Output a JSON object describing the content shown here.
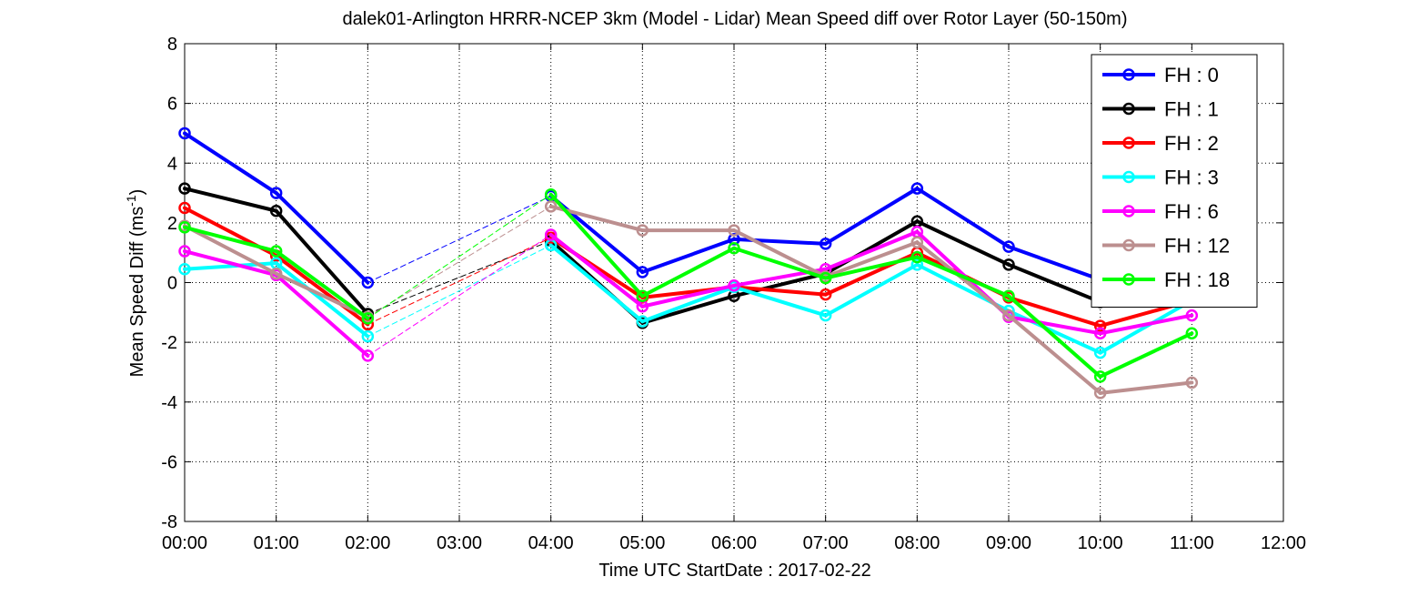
{
  "chart_data": {
    "type": "line",
    "title": "dalek01-Arlington HRRR-NCEP 3km (Model - Lidar) Mean Speed diff over Rotor Layer (50-150m)",
    "xlabel": "Time UTC    StartDate : 2017-02-22",
    "ylabel_main": "Mean Speed Diff (ms",
    "ylabel_sup": "-1",
    "ylabel_close": ")",
    "ylim": [
      -8,
      8
    ],
    "yticks": [
      -8,
      -6,
      -4,
      -2,
      0,
      2,
      4,
      6,
      8
    ],
    "xticks": [
      0,
      1,
      2,
      3,
      4,
      5,
      6,
      7,
      8,
      9,
      10,
      11,
      12
    ],
    "xtick_labels": [
      "00:00",
      "01:00",
      "02:00",
      "03:00",
      "04:00",
      "05:00",
      "06:00",
      "07:00",
      "08:00",
      "09:00",
      "10:00",
      "11:00",
      "12:00"
    ],
    "xlim": [
      0,
      12
    ],
    "grid": "dotted",
    "legend_position": "top-right",
    "gap_style": "thin dashed line across missing hour 03:00",
    "series": [
      {
        "name": "FH : 0",
        "color": "#0000ff",
        "x": [
          0,
          1,
          2,
          4,
          5,
          6,
          7,
          8,
          9,
          10,
          11
        ],
        "values": [
          5.0,
          3.0,
          0.0,
          2.9,
          0.35,
          1.45,
          1.3,
          3.15,
          1.2,
          0.1,
          null
        ]
      },
      {
        "name": "FH : 1",
        "color": "#000000",
        "x": [
          0,
          1,
          2,
          4,
          5,
          6,
          7,
          8,
          9,
          10,
          11
        ],
        "values": [
          3.15,
          2.4,
          -1.05,
          1.4,
          -1.35,
          -0.45,
          0.3,
          2.05,
          0.6,
          -0.65,
          null
        ]
      },
      {
        "name": "FH : 2",
        "color": "#ff0000",
        "x": [
          0,
          1,
          2,
          4,
          5,
          6,
          7,
          8,
          9,
          10,
          11
        ],
        "values": [
          2.5,
          0.9,
          -1.4,
          1.5,
          -0.5,
          -0.15,
          -0.4,
          1.0,
          -0.5,
          -1.45,
          -0.6
        ]
      },
      {
        "name": "FH : 3",
        "color": "#00ffff",
        "x": [
          0,
          1,
          2,
          4,
          5,
          6,
          7,
          8,
          9,
          10,
          11
        ],
        "values": [
          0.45,
          0.65,
          -1.8,
          1.25,
          -1.3,
          -0.15,
          -1.1,
          0.6,
          -0.95,
          -2.35,
          -0.6
        ]
      },
      {
        "name": "FH : 6",
        "color": "#ff00ff",
        "x": [
          0,
          1,
          2,
          4,
          5,
          6,
          7,
          8,
          9,
          10,
          11
        ],
        "values": [
          1.05,
          0.25,
          -2.45,
          1.6,
          -0.8,
          -0.1,
          0.45,
          1.7,
          -1.15,
          -1.7,
          -1.1
        ]
      },
      {
        "name": "FH : 12",
        "color": "#bc8f8f",
        "x": [
          0,
          1,
          2,
          4,
          5,
          6,
          7,
          8,
          9,
          10,
          11
        ],
        "values": [
          1.9,
          0.3,
          -1.15,
          2.55,
          1.75,
          1.75,
          0.2,
          1.35,
          -1.1,
          -3.7,
          -3.35
        ]
      },
      {
        "name": "FH : 18",
        "color": "#00ff00",
        "x": [
          0,
          1,
          2,
          4,
          5,
          6,
          7,
          8,
          9,
          10,
          11
        ],
        "values": [
          1.85,
          1.05,
          -1.2,
          2.95,
          -0.45,
          1.15,
          0.15,
          0.85,
          -0.45,
          -3.15,
          -1.7
        ]
      }
    ]
  }
}
